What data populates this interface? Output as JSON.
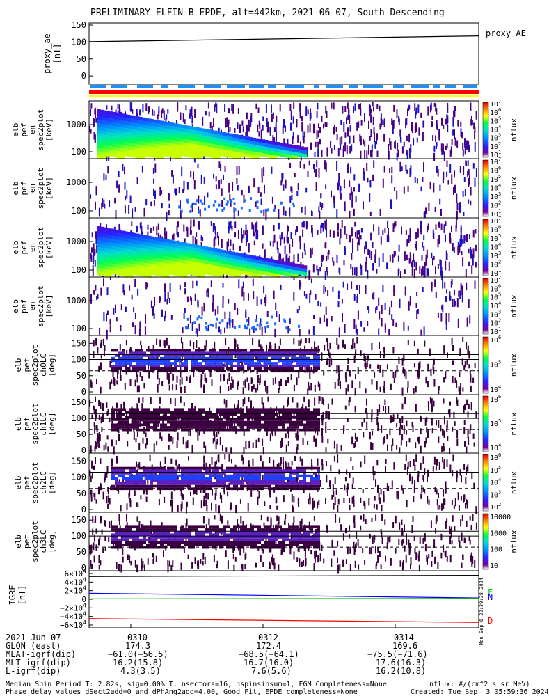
{
  "title": "PRELIMINARY ELFIN-B EPDE, alt=442km, 2021-06-07, South Descending",
  "chart_data": {
    "type": "heatmap",
    "panels": [
      {
        "kind": "line",
        "ylabel": [
          "proxy_ae",
          "[nT]"
        ],
        "yticks": [
          "150",
          "100",
          "50",
          "0"
        ],
        "legend": "proxy_AE",
        "ylim": [
          -10,
          150
        ],
        "x": [
          0,
          1
        ],
        "y": [
          101,
          118
        ]
      },
      {
        "kind": "spec",
        "ylabel": [
          "elb",
          "pef",
          "en",
          "spec2plot",
          "[keV]"
        ],
        "yticks": [
          "1000",
          "100"
        ],
        "cbar": [
          "10^7",
          "10^6",
          "10^5",
          "10^4",
          "10^3",
          "10^2",
          "10^1"
        ],
        "cbar_label": "nflux",
        "intensity": "full"
      },
      {
        "kind": "spec",
        "ylabel": [
          "elb",
          "pef",
          "en",
          "spec2plot",
          "[keV]"
        ],
        "yticks": [
          "1000",
          "100"
        ],
        "cbar": [
          "10^7",
          "10^6",
          "10^5",
          "10^4",
          "10^3",
          "10^2",
          "10^1"
        ],
        "cbar_label": "nflux",
        "intensity": "sparse"
      },
      {
        "kind": "spec",
        "ylabel": [
          "elb",
          "pef",
          "en",
          "spec2plot",
          "[keV]"
        ],
        "yticks": [
          "1000",
          "100"
        ],
        "cbar": [
          "10^7",
          "10^6",
          "10^5",
          "10^4",
          "10^3",
          "10^2",
          "10^1"
        ],
        "cbar_label": "nflux",
        "intensity": "full"
      },
      {
        "kind": "spec",
        "ylabel": [
          "elb",
          "pef",
          "en",
          "spec2plot",
          "[keV]"
        ],
        "yticks": [
          "1000",
          "100"
        ],
        "cbar": [
          "10^7",
          "10^6",
          "10^5",
          "10^4",
          "10^3",
          "10^2",
          "10^1"
        ],
        "cbar_label": "nflux",
        "intensity": "sparse"
      },
      {
        "kind": "pa",
        "ylabel": [
          "elb",
          "pef",
          "spec2plot",
          "ch0LC",
          "[deg]"
        ],
        "yticks": [
          "150",
          "100",
          "50",
          "0"
        ],
        "cbar": [
          "10^6",
          "10^5",
          "10^4"
        ],
        "cbar_label": "nflux",
        "level": 0.35
      },
      {
        "kind": "pa",
        "ylabel": [
          "elb",
          "pef",
          "spec2plot",
          "ch1LC",
          "[deg]"
        ],
        "yticks": [
          "150",
          "100",
          "50",
          "0"
        ],
        "cbar": [
          "10^6",
          "10^5",
          "10^4"
        ],
        "cbar_label": "nflux",
        "level": 0.1
      },
      {
        "kind": "pa",
        "ylabel": [
          "elb",
          "pef",
          "spec2plot",
          "ch2LC",
          "[deg]"
        ],
        "yticks": [
          "150",
          "100",
          "50",
          "0"
        ],
        "cbar": [
          "10^6",
          "10^5",
          "10^4",
          "10^3",
          "10^2"
        ],
        "cbar_label": "nflux",
        "level": 0.3
      },
      {
        "kind": "pa",
        "ylabel": [
          "elb",
          "pef",
          "spec2plot",
          "ch3LC",
          "[deg]"
        ],
        "yticks": [
          "150",
          "100",
          "50",
          "0"
        ],
        "cbar": [
          "10000",
          "1000",
          "100",
          "10"
        ],
        "cbar_label": "nflux",
        "level": 0.2
      },
      {
        "kind": "bfield",
        "ylabel": [
          "IGRF",
          "[nT]"
        ],
        "yticks": [
          "6×10^4",
          "4×10^4",
          "2×10^4",
          "0",
          "−2×10^4",
          "−4×10^4",
          "−6×10^4"
        ],
        "legend": [
          "F",
          "N",
          "D"
        ],
        "legend_colors": [
          "#00c000",
          "#0000ff",
          "#ff0000"
        ],
        "side_label": "Mon Sep  6 22:39:38 2024"
      }
    ],
    "xaxis": {
      "row_labels": [
        "2021 Jun 07",
        "GLON (east)",
        "MLAT-igrf(dip)",
        "MLT-igrf(dip)",
        "L-igrf(dip)"
      ],
      "ticks": [
        {
          "time": "0310",
          "glon": "174.3",
          "mlat": "−61.0(−56.5)",
          "mlt": "16.2(15.8)",
          "l": "4.3(3.5)"
        },
        {
          "time": "0312",
          "glon": "172.4",
          "mlat": "−68.5(−64.1)",
          "mlt": "16.7(16.0)",
          "l": "7.6(5.6)"
        },
        {
          "time": "0314",
          "glon": "169.6",
          "mlat": "−75.5(−71.6)",
          "mlt": "17.6(16.3)",
          "l": "16.2(10.8)"
        }
      ]
    }
  },
  "footer": {
    "line1_left": "Median Spin Period T: 2.82s, sig=0.00% T, nsectors=16, nspinsinsum=1, FGM Completeness=None",
    "line2_left": "Phase delay values dSect2add=0 and dPhAng2add=4.00, Good Fit, EPDE completeness=None",
    "line1_right": "nflux: #/(cm^2 s sr MeV)",
    "line2_right": "Created: Tue Sep  3 05:59:36 2024"
  },
  "colors": {
    "yellow": "#ffff00",
    "red": "#ff0000",
    "bar_blue": "#1e90ff"
  }
}
